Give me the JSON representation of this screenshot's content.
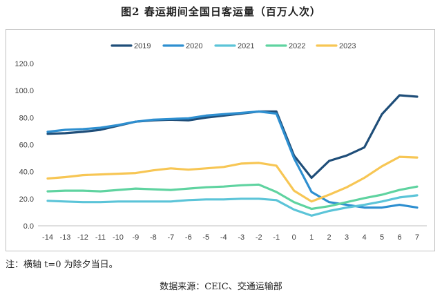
{
  "figure": {
    "title": "图2 春运期间全国日客运量（百万人次）",
    "note": "注：横轴 t=0 为除夕当日。",
    "source": "数据来源：CEIC、交通运输部"
  },
  "chart_data": {
    "type": "line",
    "title": "图2 春运期间全国日客运量（百万人次）",
    "xlabel": "",
    "ylabel": "",
    "x": [
      -14,
      -13,
      -12,
      -11,
      -10,
      -9,
      -8,
      -7,
      -6,
      -5,
      -4,
      -3,
      -2,
      -1,
      0,
      1,
      2,
      3,
      4,
      5,
      6,
      7
    ],
    "ylim": [
      0,
      120
    ],
    "yticks": [
      "0.0",
      "20.0",
      "40.0",
      "60.0",
      "80.0",
      "100.0",
      "120.0"
    ],
    "grid": false,
    "legend_position": "top",
    "series": [
      {
        "name": "2019",
        "color": "#1f4e79",
        "values": [
          68,
          68.5,
          69.5,
          71,
          74,
          77,
          78,
          78.5,
          78,
          80,
          81.5,
          83,
          84.5,
          84.5,
          52,
          35.5,
          48,
          52,
          58,
          82.5,
          96.5,
          95.5
        ]
      },
      {
        "name": "2020",
        "color": "#2e8fd0",
        "values": [
          69.5,
          71,
          71.5,
          72.5,
          74.5,
          77,
          78.5,
          79,
          79.5,
          81.5,
          82.5,
          83.5,
          84.5,
          83,
          50,
          25,
          17.5,
          15.5,
          13.5,
          13.5,
          15.5,
          13.5
        ]
      },
      {
        "name": "2021",
        "color": "#5bc4d8",
        "values": [
          18.5,
          18,
          17.5,
          17.5,
          18,
          18,
          18,
          18,
          19,
          19.5,
          19.5,
          20,
          20,
          19,
          12,
          7.5,
          11,
          13.5,
          15.5,
          18,
          21,
          22.5
        ]
      },
      {
        "name": "2022",
        "color": "#5fd3a0",
        "values": [
          25.5,
          26,
          26,
          25.5,
          26.5,
          27.5,
          27,
          26.5,
          27.5,
          28.5,
          29,
          30,
          30.5,
          25,
          17.5,
          12.5,
          14.5,
          17.5,
          20.5,
          23,
          26.5,
          29
        ]
      },
      {
        "name": "2023",
        "color": "#f7c654",
        "values": [
          35,
          36,
          37.5,
          38,
          38.5,
          39,
          41,
          42.5,
          41.5,
          42.5,
          43.5,
          46,
          46.5,
          44.5,
          26,
          18,
          23,
          28.5,
          35.5,
          44,
          51,
          50.5
        ]
      }
    ]
  }
}
